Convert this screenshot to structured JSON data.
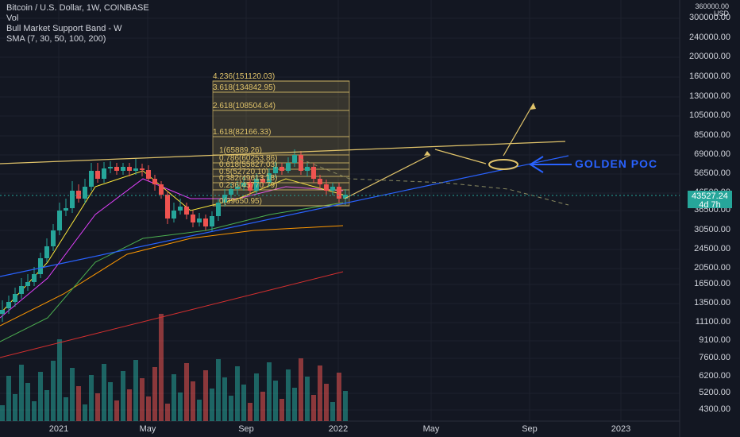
{
  "legend": {
    "symbol": "Bitcoin / U.S. Dollar, 1W, COINBASE",
    "vol": "Vol",
    "band": "Bull Market Support Band - W",
    "sma": "SMA (7, 30, 50, 100, 200)"
  },
  "price_axis": {
    "unit_top": "360000.00",
    "unit": "USD",
    "labels": [
      "300000.00",
      "240000.00",
      "200000.00",
      "160000.00",
      "130000.00",
      "105000.00",
      "85000.00",
      "69000.00",
      "56500.00",
      "46500.00",
      "36500.00",
      "30500.00",
      "24500.00",
      "20500.00",
      "16500.00",
      "13500.00",
      "11100.00",
      "9100.00",
      "7600.00",
      "6200.00",
      "5200.00",
      "4300.00"
    ]
  },
  "time_axis": {
    "labels": [
      "2021",
      "May",
      "Sep",
      "2022",
      "May",
      "Sep",
      "2023"
    ]
  },
  "current_price": {
    "value": "43527.24",
    "countdown": "4d 7h",
    "color": "#26a69a"
  },
  "fib_levels": [
    {
      "label": "4.236(151120.03)"
    },
    {
      "label": "3.618(134842.95)"
    },
    {
      "label": "2.618(108504.64)"
    },
    {
      "label": "1.618(82166.33)"
    },
    {
      "label": "1(65889.26)"
    },
    {
      "label": "0.786(60253.86)"
    },
    {
      "label": "0.618(55827.03)"
    },
    {
      "label": "0.5(52720.10)"
    },
    {
      "label": "0.382(49613.18)"
    },
    {
      "label": "0.236(45770.79)"
    },
    {
      "label": "0(39650.95)"
    }
  ],
  "annotation": {
    "text": "GOLDEN POC"
  },
  "colors": {
    "background": "#131722",
    "up": "#26a69a",
    "down": "#ef5350",
    "fib": "#e0c36a",
    "annotation": "#2962ff"
  }
}
